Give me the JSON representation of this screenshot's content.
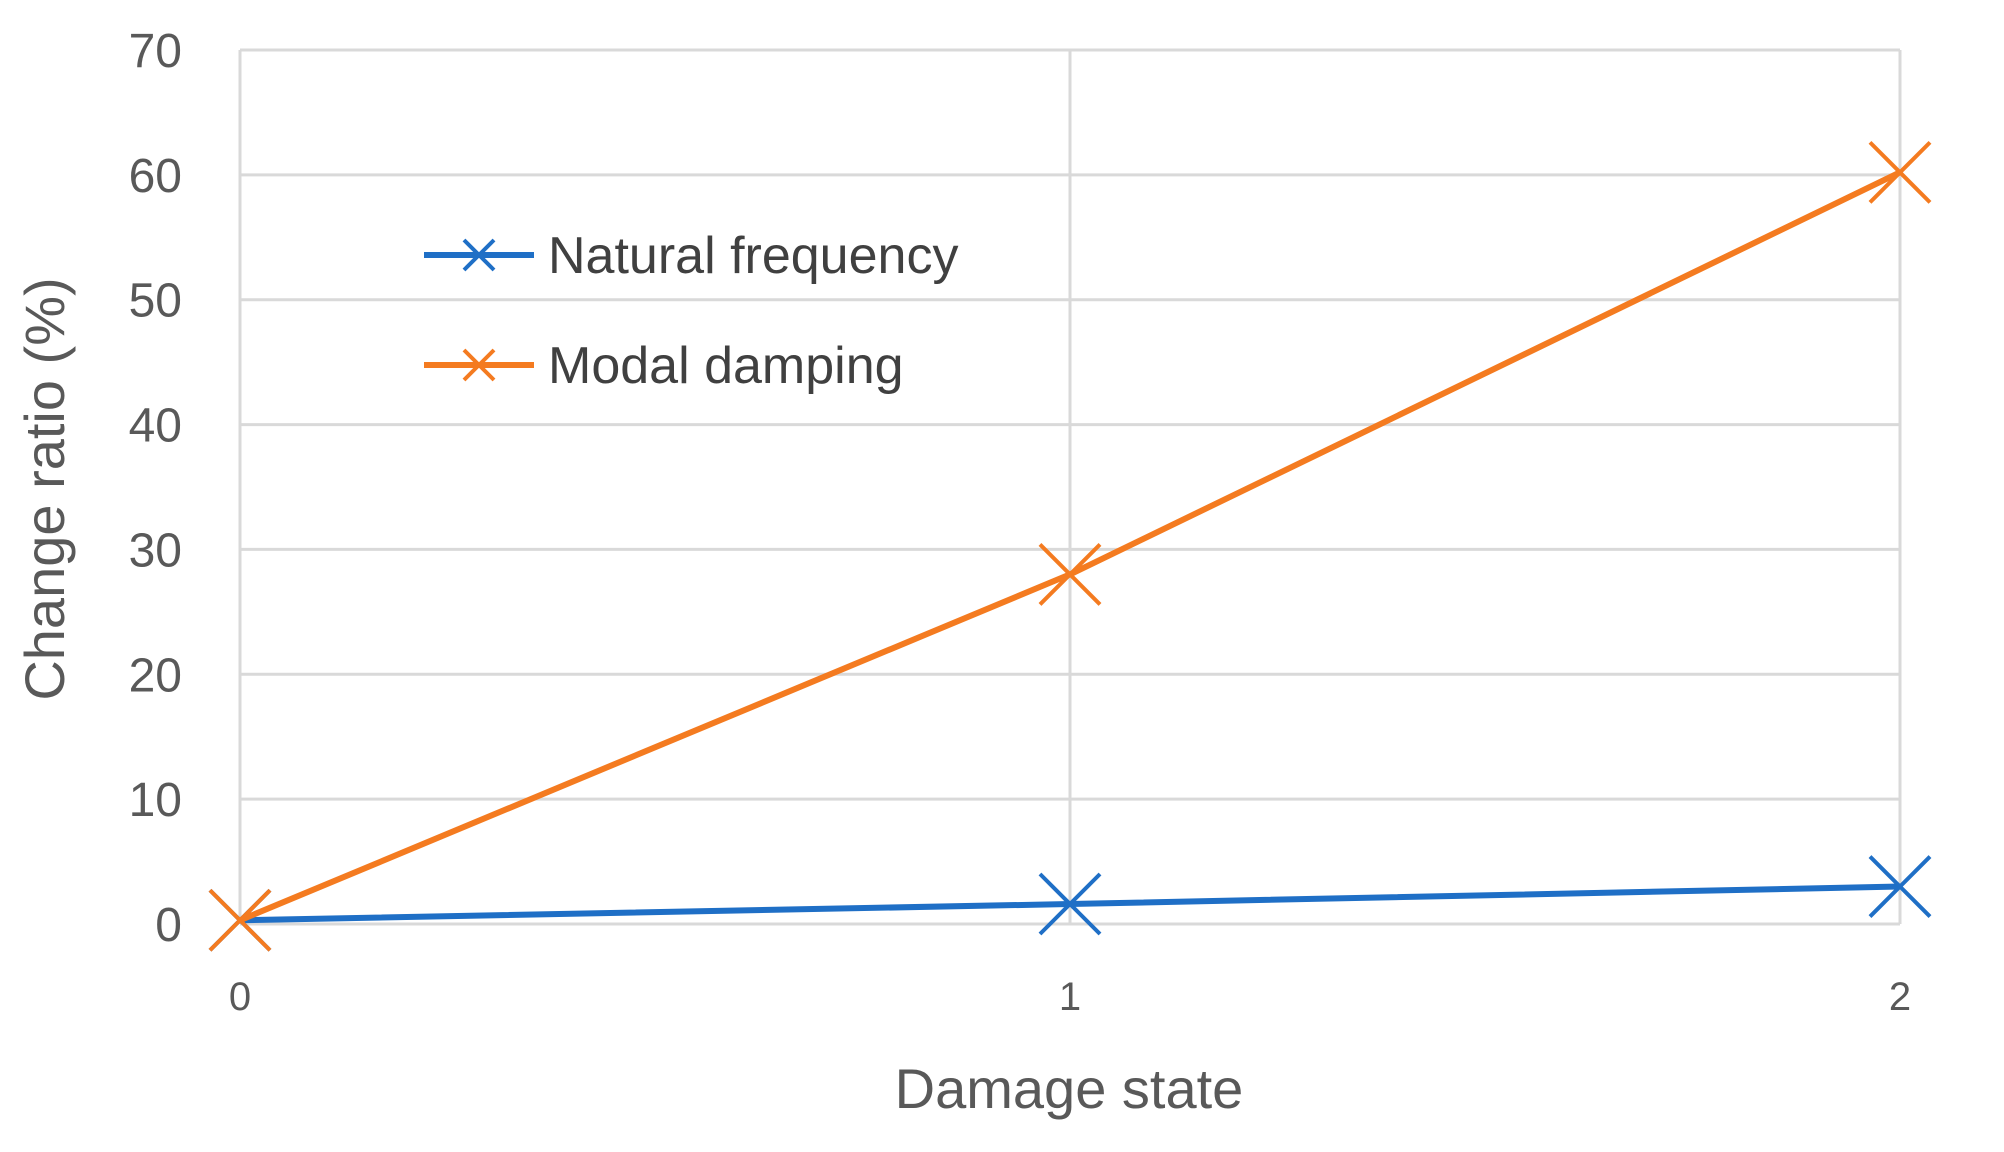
{
  "chart_data": {
    "type": "line",
    "title": "",
    "xlabel": "Damage state",
    "ylabel": "Change ratio (%)",
    "x": [
      0,
      1,
      2
    ],
    "xlim": [
      0,
      2
    ],
    "ylim": [
      0,
      70
    ],
    "x_ticks": [
      "0",
      "1",
      "2"
    ],
    "y_ticks": [
      "0",
      "10",
      "20",
      "30",
      "40",
      "50",
      "60",
      "70"
    ],
    "grid": true,
    "legend_position": "top-left",
    "series": [
      {
        "name": "Natural frequency",
        "color": "#1f6fc6",
        "marker": "x",
        "values": [
          0.3,
          1.6,
          3.0
        ]
      },
      {
        "name": "Modal damping",
        "color": "#f47b20",
        "marker": "x",
        "values": [
          0.3,
          28.0,
          60.2
        ]
      }
    ]
  }
}
